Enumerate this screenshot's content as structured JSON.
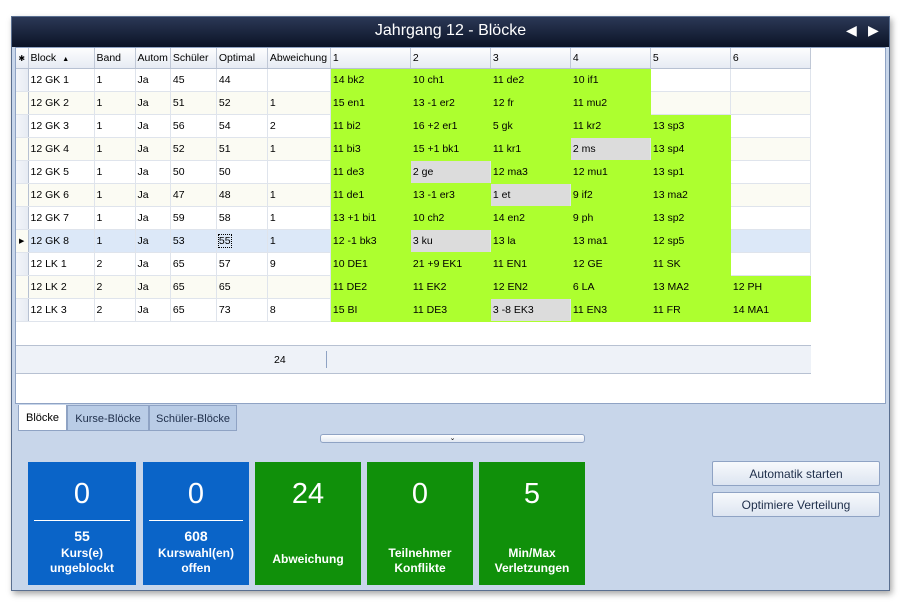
{
  "window": {
    "title": "Jahrgang 12 - Blöcke",
    "prev_icon": "◀",
    "next_icon": "▶"
  },
  "grid": {
    "corner_icon": "✱",
    "columns": [
      "Block",
      "Band",
      "Autom",
      "Schüler",
      "Optimal",
      "Abweichung",
      "1",
      "2",
      "3",
      "4",
      "5",
      "6"
    ],
    "rows": [
      {
        "block": "12 GK 1",
        "band": "1",
        "autom": "Ja",
        "schueler": "45",
        "optimal": "44",
        "abw": "",
        "c": [
          [
            "14 bk2",
            "g"
          ],
          [
            "10 ch1",
            "g"
          ],
          [
            "11 de2",
            "g"
          ],
          [
            "10 if1",
            "g"
          ],
          [
            "",
            ""
          ],
          [
            "",
            ""
          ]
        ]
      },
      {
        "block": "12 GK 2",
        "band": "1",
        "autom": "Ja",
        "schueler": "51",
        "optimal": "52",
        "abw": "1",
        "c": [
          [
            "15 en1",
            "g"
          ],
          [
            "13 -1 er2",
            "g"
          ],
          [
            "12 fr",
            "g"
          ],
          [
            "11 mu2",
            "g"
          ],
          [
            "",
            ""
          ],
          [
            "",
            ""
          ]
        ]
      },
      {
        "block": "12 GK 3",
        "band": "1",
        "autom": "Ja",
        "schueler": "56",
        "optimal": "54",
        "abw": "2",
        "c": [
          [
            "11 bi2",
            "g"
          ],
          [
            "16 +2 er1",
            "g"
          ],
          [
            "5 gk",
            "g"
          ],
          [
            "11 kr2",
            "g"
          ],
          [
            "13 sp3",
            "g"
          ],
          [
            "",
            ""
          ]
        ]
      },
      {
        "block": "12 GK 4",
        "band": "1",
        "autom": "Ja",
        "schueler": "52",
        "optimal": "51",
        "abw": "1",
        "c": [
          [
            "11 bi3",
            "g"
          ],
          [
            "15 +1 bk1",
            "g"
          ],
          [
            "11 kr1",
            "g"
          ],
          [
            "2 ms",
            "d"
          ],
          [
            "13 sp4",
            "g"
          ],
          [
            "",
            ""
          ]
        ]
      },
      {
        "block": "12 GK 5",
        "band": "1",
        "autom": "Ja",
        "schueler": "50",
        "optimal": "50",
        "abw": "",
        "c": [
          [
            "11 de3",
            "g"
          ],
          [
            "2 ge",
            "d"
          ],
          [
            "12 ma3",
            "g"
          ],
          [
            "12 mu1",
            "g"
          ],
          [
            "13 sp1",
            "g"
          ],
          [
            "",
            ""
          ]
        ]
      },
      {
        "block": "12 GK 6",
        "band": "1",
        "autom": "Ja",
        "schueler": "47",
        "optimal": "48",
        "abw": "1",
        "c": [
          [
            "11 de1",
            "g"
          ],
          [
            "13 -1 er3",
            "g"
          ],
          [
            "1 et",
            "d"
          ],
          [
            "9 if2",
            "g"
          ],
          [
            "13 ma2",
            "g"
          ],
          [
            "",
            ""
          ]
        ]
      },
      {
        "block": "12 GK 7",
        "band": "1",
        "autom": "Ja",
        "schueler": "59",
        "optimal": "58",
        "abw": "1",
        "c": [
          [
            "13 +1 bi1",
            "g"
          ],
          [
            "10 ch2",
            "g"
          ],
          [
            "14 en2",
            "g"
          ],
          [
            "9 ph",
            "g"
          ],
          [
            "13 sp2",
            "g"
          ],
          [
            "",
            ""
          ]
        ]
      },
      {
        "block": "12 GK 8",
        "band": "1",
        "autom": "Ja",
        "schueler": "53",
        "optimal": "55",
        "abw": "1",
        "c": [
          [
            "12 -1 bk3",
            "g"
          ],
          [
            "3 ku",
            "d"
          ],
          [
            "13 la",
            "g"
          ],
          [
            "13 ma1",
            "g"
          ],
          [
            "12 sp5",
            "g"
          ],
          [
            "",
            ""
          ]
        ]
      },
      {
        "block": "12 LK 1",
        "band": "2",
        "autom": "Ja",
        "schueler": "65",
        "optimal": "57",
        "abw": "9",
        "c": [
          [
            "10 DE1",
            "g"
          ],
          [
            "21 +9 EK1",
            "g"
          ],
          [
            "11 EN1",
            "g"
          ],
          [
            "12 GE",
            "g"
          ],
          [
            "11 SK",
            "g"
          ],
          [
            "",
            ""
          ]
        ]
      },
      {
        "block": "12 LK 2",
        "band": "2",
        "autom": "Ja",
        "schueler": "65",
        "optimal": "65",
        "abw": "",
        "c": [
          [
            "11 DE2",
            "g"
          ],
          [
            "11 EK2",
            "g"
          ],
          [
            "12 EN2",
            "g"
          ],
          [
            "6 LA",
            "g"
          ],
          [
            "13 MA2",
            "g"
          ],
          [
            "12 PH",
            "g"
          ]
        ]
      },
      {
        "block": "12 LK 3",
        "band": "2",
        "autom": "Ja",
        "schueler": "65",
        "optimal": "73",
        "abw": "8",
        "c": [
          [
            "15 BI",
            "g"
          ],
          [
            "11 DE3",
            "g"
          ],
          [
            "3 -8 EK3",
            "d"
          ],
          [
            "11 EN3",
            "g"
          ],
          [
            "11 FR",
            "g"
          ],
          [
            "14 MA1",
            "g"
          ]
        ]
      }
    ],
    "current_row_marker": "▶",
    "footer_sum": "24"
  },
  "tabs": [
    "Blöcke",
    "Kurse-Blöcke",
    "Schüler-Blöcke"
  ],
  "splitter_icon": "⌄",
  "tiles": [
    {
      "value": "0",
      "sub": "55",
      "label": "Kurs(e)\nungeblockt"
    },
    {
      "value": "0",
      "sub": "608",
      "label": "Kurswahl(en)\noffen"
    },
    {
      "value": "24",
      "sub": "",
      "label": "Abweichung"
    },
    {
      "value": "0",
      "sub": "",
      "label": "Teilnehmer\nKonflikte"
    },
    {
      "value": "5",
      "sub": "",
      "label": "Min/Max\nVerletzungen"
    }
  ],
  "buttons": {
    "auto": "Automatik starten",
    "optimize": "Optimiere Verteilung"
  },
  "colors": {
    "assigned": "#adff2f",
    "conflict": "#dcdcdc",
    "tile_blue": "#0a64c8",
    "tile_green": "#10900a"
  }
}
